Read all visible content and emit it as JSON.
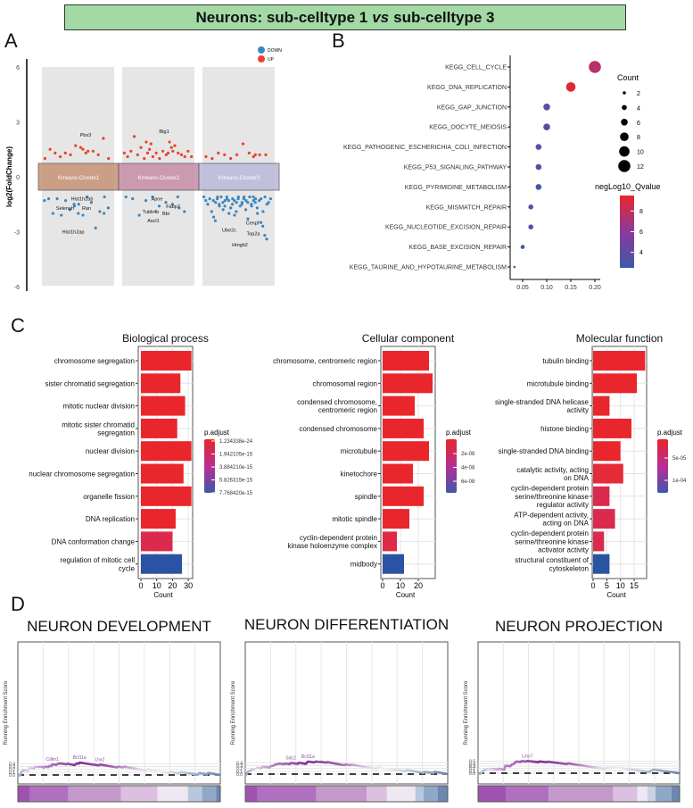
{
  "header": {
    "title_left": "Neurons: sub-celltype 1",
    "title_vs": "vs",
    "title_right": "sub-celltype 3",
    "bg_color": "#a3d9a5"
  },
  "panels": {
    "a": "A",
    "b": "B",
    "c": "C",
    "d": "D"
  },
  "chart_data": [
    {
      "panel": "A",
      "type": "scatter",
      "ylabel": "log2(FoldChange)",
      "ylim": [
        -6,
        6
      ],
      "yticks": [
        "6",
        "3",
        "0",
        "-3",
        "-6"
      ],
      "legend": [
        {
          "label": "DOWN",
          "color": "#3b86c0"
        },
        {
          "label": "UP",
          "color": "#e8432e"
        }
      ],
      "legend_position": "top-right",
      "clusters": [
        {
          "name": "Kmeans-Cluster1",
          "band_color": "#c8987c",
          "up": [
            1.0,
            1.5,
            1.3,
            1.1,
            1.3,
            1.2,
            1.7,
            1.6,
            1.3,
            1.5,
            1.4,
            1.4,
            1.2,
            2.1,
            1.0
          ],
          "down": [
            -1.3,
            -1.2,
            -2.0,
            -1.2,
            -2.1,
            -1.3,
            -1.8,
            -1.5,
            -2.0,
            -1.6,
            -1.5,
            -2.1,
            -1.1,
            -1.4,
            -2.8,
            -1.9,
            -2.0,
            -1.7,
            -1.1
          ],
          "genes": [
            {
              "gene": "Pbx3",
              "y": 2.3
            },
            {
              "gene": "Hist1h2ab",
              "y": -1.2
            },
            {
              "gene": "Selenoh",
              "y": -1.7
            },
            {
              "gene": "Ran",
              "y": -1.7
            },
            {
              "gene": "Hist1h2ap",
              "y": -3.0
            }
          ]
        },
        {
          "name": "Kmeans-Cluster2",
          "band_color": "#c991ab",
          "up": [
            1.3,
            1.1,
            1.4,
            2.2,
            1.2,
            1.6,
            1.0,
            1.3,
            1.8,
            1.9,
            1.5,
            1.1,
            1.3,
            1.0,
            1.4,
            1.2,
            1.9,
            1.4,
            1.3,
            1.6,
            1.7,
            1.3,
            1.2,
            1.1,
            1.4,
            1.1
          ],
          "down": [
            -1.1,
            -1.2,
            -2.1,
            -1.3,
            -1.1,
            -1.6,
            -1.4,
            -1.5,
            -1.7,
            -1.1,
            -1.9
          ],
          "genes": [
            {
              "gene": "Btg1",
              "y": 2.5
            },
            {
              "gene": "Apoe",
              "y": -1.2
            },
            {
              "gene": "Fabp7",
              "y": -1.6
            },
            {
              "gene": "Tubb4b",
              "y": -1.9
            },
            {
              "gene": "Bbi",
              "y": -2.0
            },
            {
              "gene": "Ascl1",
              "y": -2.4
            }
          ]
        },
        {
          "name": "Kmeans-Cluster3",
          "band_color": "#bcbcdc",
          "up": [
            1.1,
            1.0,
            1.3,
            1.2,
            1.0,
            1.2,
            1.8,
            1.3,
            1.2,
            1.1,
            1.2,
            1.2
          ],
          "down": [
            -1.1,
            -1.3,
            -1.5,
            -1.2,
            -1.9,
            -2.2,
            -1.4,
            -1.1,
            -1.6,
            -1.3,
            -2.4,
            -1.2,
            -1.5,
            -1.1,
            -1.8,
            -1.3,
            -1.2,
            -2.0,
            -1.4,
            -1.6,
            -1.1,
            -1.3,
            -1.7,
            -1.2,
            -2.1,
            -1.4,
            -1.1,
            -1.5,
            -1.3,
            -1.9,
            -1.2,
            -1.6,
            -1.4,
            -1.1,
            -1.3,
            -2.3,
            -1.5,
            -1.2,
            -1.8,
            -1.4,
            -1.1,
            -1.6,
            -1.3,
            -1.2,
            -2.0,
            -1.5,
            -1.1,
            -1.4,
            -1.7,
            -1.3,
            -1.2,
            -1.9,
            -1.1,
            -1.5,
            -2.5,
            -2.7,
            -3.2,
            -3.4,
            -1.4,
            -1.2
          ],
          "genes": [
            {
              "gene": "Cenpf",
              "y": -2.5
            },
            {
              "gene": "Ube2c",
              "y": -2.9
            },
            {
              "gene": "Top2a",
              "y": -3.1
            },
            {
              "gene": "Hmgb2",
              "y": -3.7
            }
          ]
        }
      ]
    },
    {
      "panel": "B",
      "type": "scatter",
      "xticks": [
        "0.05",
        "0.10",
        "0.15",
        "0.20"
      ],
      "size_legend_title": "Count",
      "size_legend": [
        2,
        4,
        6,
        8,
        10,
        12
      ],
      "color_legend_title": "negLog10_Qvalue",
      "color_ticks": [
        "8",
        "6",
        "4"
      ],
      "color_range": [
        2.5,
        9.5
      ],
      "colors": {
        "low": "#3b5aa8",
        "mid": "#8a3a9c",
        "high": "#e8262b"
      },
      "terms": [
        {
          "label": "KEGG_CELL_CYCLE",
          "x": 0.2,
          "count": 12,
          "q": 7.6
        },
        {
          "label": "KEGG_DNA_REPLICATION",
          "x": 0.15,
          "count": 9,
          "q": 9.2
        },
        {
          "label": "KEGG_GAP_JUNCTION",
          "x": 0.1,
          "count": 6,
          "q": 4.0
        },
        {
          "label": "KEGG_OOCYTE_MEIOSIS",
          "x": 0.1,
          "count": 6,
          "q": 3.8
        },
        {
          "label": "KEGG_PATHOGENIC_ESCHERICHIA_COLI_INFECTION",
          "x": 0.083,
          "count": 5,
          "q": 3.8
        },
        {
          "label": "KEGG_P53_SIGNALING_PATHWAY",
          "x": 0.083,
          "count": 5,
          "q": 3.6
        },
        {
          "label": "KEGG_PYRIMIDINE_METABOLISM",
          "x": 0.083,
          "count": 5,
          "q": 3.0
        },
        {
          "label": "KEGG_MISMATCH_REPAIR",
          "x": 0.067,
          "count": 4,
          "q": 4.5
        },
        {
          "label": "KEGG_NUCLEOTIDE_EXCISION_REPAIR",
          "x": 0.067,
          "count": 4,
          "q": 3.8
        },
        {
          "label": "KEGG_BASE_EXCISION_REPAIR",
          "x": 0.05,
          "count": 3,
          "q": 2.7
        },
        {
          "label": "KEGG_TAURINE_AND_HYPOTAURINE_METABOLISM",
          "x": 0.033,
          "count": 1,
          "q": 3.2
        }
      ]
    },
    {
      "panel": "C",
      "type": "bar",
      "title": "Biological process",
      "xlabel": "Count",
      "xticks": [
        0,
        10,
        20,
        30
      ],
      "legend_title": "p.adjust",
      "legend_ticks": [
        "1.234338e-24",
        "1.942105e-15",
        "3.884210e-15",
        "5.826315e-15",
        "7.768420e-15"
      ],
      "categories": [
        "chromosome segregation",
        "sister chromatid segregation",
        "mitotic nuclear division",
        "mitotic sister chromatid\nsegregation",
        "nuclear division",
        "nuclear chromosome segregation",
        "organelle fission",
        "DNA replication",
        "DNA conformation change",
        "regulation of mitotic cell\ncycle"
      ],
      "values": [
        32,
        25,
        28,
        23,
        32,
        27,
        32,
        22,
        20,
        26
      ],
      "fills": [
        "#e8262b",
        "#e8262b",
        "#e8262b",
        "#e8262b",
        "#e8262b",
        "#e8262b",
        "#e8262b",
        "#e8262b",
        "#dc2a4e",
        "#2b53a3"
      ]
    },
    {
      "panel": "C",
      "type": "bar",
      "title": "Cellular component",
      "xlabel": "Count",
      "xticks": [
        0,
        10,
        20
      ],
      "legend_title": "p.adjust",
      "legend_ticks": [
        "2e-08",
        "4e-08",
        "6e-08"
      ],
      "categories": [
        "chromosome, centromeric region",
        "chromosomal region",
        "condensed chromosome,\ncentromeric region",
        "condensed chromosome",
        "microtubule",
        "kinetochore",
        "spindle",
        "mitotic spindle",
        "cyclin-dependent protein\nkinase holoenzyme complex",
        "midbody"
      ],
      "values": [
        26,
        28,
        18,
        23,
        26,
        17,
        23,
        15,
        8,
        12
      ],
      "fills": [
        "#e8262b",
        "#e8262b",
        "#e8262b",
        "#e8262b",
        "#e8262b",
        "#e8262b",
        "#e8262b",
        "#e8262b",
        "#df2a45",
        "#2b53a3"
      ]
    },
    {
      "panel": "C",
      "type": "bar",
      "title": "Molecular function",
      "xlabel": "Count",
      "xticks": [
        0,
        5,
        10,
        15
      ],
      "legend_title": "p.adjust",
      "legend_ticks": [
        "5e-05",
        "1e-04"
      ],
      "categories": [
        "tubulin binding",
        "microtubule binding",
        "single-stranded DNA helicase\nactivity",
        "histone binding",
        "single-stranded DNA binding",
        "catalytic activity, acting\non DNA",
        "cyclin-dependent protein\nserine/threonine kinase\nregulator activity",
        "ATP-dependent activity,\nacting on DNA",
        "cyclin-dependent protein\nserine/threonine kinase\nactivator activity",
        "structural constituent of\ncytoskeleton"
      ],
      "values": [
        19,
        16,
        6,
        14,
        10,
        11,
        6,
        8,
        4,
        6
      ],
      "fills": [
        "#e8262b",
        "#e8262b",
        "#e8262b",
        "#e8262b",
        "#e8262b",
        "#e52a38",
        "#dc2a4e",
        "#dc2a4e",
        "#dc2a4e",
        "#2b53a3"
      ]
    },
    {
      "panel": "D",
      "type": "line",
      "title": "NEURON DEVELOPMENT",
      "ylabel": "Running Enrichment Score",
      "yticks": [
        0.0,
        0.1,
        0.2,
        0.3,
        0.4
      ],
      "ylim": [
        -0.03,
        0.47
      ],
      "curve": [
        [
          0,
          0
        ],
        [
          0.01,
          -0.02
        ],
        [
          0.02,
          0.12
        ],
        [
          0.03,
          0.18
        ],
        [
          0.05,
          0.14
        ],
        [
          0.055,
          0.25
        ],
        [
          0.08,
          0.23
        ],
        [
          0.085,
          0.29
        ],
        [
          0.12,
          0.29
        ],
        [
          0.13,
          0.26
        ],
        [
          0.135,
          0.3
        ],
        [
          0.15,
          0.28
        ],
        [
          0.155,
          0.32
        ],
        [
          0.165,
          0.31
        ],
        [
          0.17,
          0.38
        ],
        [
          0.19,
          0.36
        ],
        [
          0.195,
          0.39
        ],
        [
          0.21,
          0.41
        ],
        [
          0.24,
          0.38
        ],
        [
          0.245,
          0.4
        ],
        [
          0.28,
          0.35
        ],
        [
          0.29,
          0.41
        ],
        [
          0.3,
          0.4
        ],
        [
          0.305,
          0.44
        ],
        [
          0.4,
          0.34
        ],
        [
          0.405,
          0.37
        ],
        [
          0.49,
          0.27
        ],
        [
          0.495,
          0.3
        ],
        [
          0.52,
          0.27
        ],
        [
          0.525,
          0.3
        ],
        [
          0.63,
          0.16
        ],
        [
          0.64,
          0.2
        ],
        [
          0.75,
          0.07
        ],
        [
          0.755,
          0.11
        ],
        [
          0.8,
          0.05
        ],
        [
          0.805,
          0.1
        ],
        [
          0.89,
          0.01
        ],
        [
          0.895,
          0.07
        ],
        [
          0.935,
          0.02
        ],
        [
          0.94,
          0.07
        ],
        [
          1.0,
          0.0
        ]
      ],
      "rank_bar": [
        [
          0,
          0.06,
          "#a052b0"
        ],
        [
          0.06,
          0.25,
          "#b070c0"
        ],
        [
          0.25,
          0.51,
          "#c598cc"
        ],
        [
          0.51,
          0.69,
          "#dcc0e0"
        ],
        [
          0.69,
          0.84,
          "#efe7f1"
        ],
        [
          0.84,
          0.91,
          "#b8c8dc"
        ],
        [
          0.91,
          0.98,
          "#8fa8c8"
        ],
        [
          0.98,
          1,
          "#6c88b0"
        ]
      ],
      "genes": [
        {
          "gene": "Bcl11a",
          "x": 0.305
        },
        {
          "gene": "Cdkn1",
          "x": 0.17
        },
        {
          "gene": "Lhx2",
          "x": 0.405
        }
      ]
    },
    {
      "panel": "D",
      "type": "line",
      "title": "NEURON DIFFERENTIATION",
      "ylabel": "Running Enrichment Score",
      "yticks": [
        0.0,
        0.1,
        0.2,
        0.3,
        0.4
      ],
      "ylim": [
        -0.03,
        0.47
      ],
      "curve": [
        [
          0,
          0
        ],
        [
          0.005,
          -0.02
        ],
        [
          0.01,
          0.05
        ],
        [
          0.02,
          0.11
        ],
        [
          0.03,
          0.13
        ],
        [
          0.035,
          0.17
        ],
        [
          0.05,
          0.18
        ],
        [
          0.06,
          0.23
        ],
        [
          0.08,
          0.2
        ],
        [
          0.085,
          0.26
        ],
        [
          0.12,
          0.23
        ],
        [
          0.125,
          0.28
        ],
        [
          0.14,
          0.3
        ],
        [
          0.15,
          0.34
        ],
        [
          0.17,
          0.37
        ],
        [
          0.19,
          0.35
        ],
        [
          0.2,
          0.37
        ],
        [
          0.22,
          0.35
        ],
        [
          0.225,
          0.39
        ],
        [
          0.26,
          0.36
        ],
        [
          0.265,
          0.4
        ],
        [
          0.3,
          0.36
        ],
        [
          0.305,
          0.41
        ],
        [
          0.31,
          0.44
        ],
        [
          0.34,
          0.41
        ],
        [
          0.35,
          0.44
        ],
        [
          0.37,
          0.42
        ],
        [
          0.375,
          0.43
        ],
        [
          0.4,
          0.4
        ],
        [
          0.405,
          0.42
        ],
        [
          0.49,
          0.31
        ],
        [
          0.495,
          0.34
        ],
        [
          0.52,
          0.31
        ],
        [
          0.525,
          0.33
        ],
        [
          0.65,
          0.19
        ],
        [
          0.655,
          0.24
        ],
        [
          0.73,
          0.14
        ],
        [
          0.735,
          0.16
        ],
        [
          0.79,
          0.1
        ],
        [
          0.8,
          0.14
        ],
        [
          0.88,
          0.04
        ],
        [
          0.885,
          0.08
        ],
        [
          0.93,
          0.03
        ],
        [
          0.935,
          0.08
        ],
        [
          1,
          0
        ]
      ],
      "rank_bar": [
        [
          0,
          0.06,
          "#a052b0"
        ],
        [
          0.06,
          0.35,
          "#b070c0"
        ],
        [
          0.35,
          0.6,
          "#c598cc"
        ],
        [
          0.6,
          0.7,
          "#dcc0e0"
        ],
        [
          0.7,
          0.84,
          "#efe7f1"
        ],
        [
          0.84,
          0.88,
          "#b8c8dc"
        ],
        [
          0.88,
          0.95,
          "#8fa8c8"
        ],
        [
          0.95,
          1,
          "#6c88b0"
        ]
      ],
      "genes": [
        {
          "gene": "Bcl11a",
          "x": 0.31
        },
        {
          "gene": "Sdc2",
          "x": 0.225
        }
      ]
    },
    {
      "panel": "D",
      "type": "line",
      "title": "NEURON PROJECTION",
      "ylabel": "Running Enrichment Score",
      "yticks": [
        0.0,
        0.1,
        0.2,
        0.3,
        0.4,
        0.5
      ],
      "ylim": [
        -0.04,
        0.54
      ],
      "curve": [
        [
          0,
          0
        ],
        [
          0.01,
          -0.03
        ],
        [
          0.02,
          0.04
        ],
        [
          0.03,
          0.13
        ],
        [
          0.04,
          0.15
        ],
        [
          0.05,
          0.18
        ],
        [
          0.07,
          0.18
        ],
        [
          0.1,
          0.16
        ],
        [
          0.105,
          0.19
        ],
        [
          0.13,
          0.14
        ],
        [
          0.135,
          0.31
        ],
        [
          0.16,
          0.29
        ],
        [
          0.165,
          0.34
        ],
        [
          0.17,
          0.37
        ],
        [
          0.18,
          0.4
        ],
        [
          0.185,
          0.45
        ],
        [
          0.19,
          0.49
        ],
        [
          0.21,
          0.47
        ],
        [
          0.215,
          0.5
        ],
        [
          0.24,
          0.49
        ],
        [
          0.245,
          0.51
        ],
        [
          0.3,
          0.46
        ],
        [
          0.305,
          0.49
        ],
        [
          0.34,
          0.46
        ],
        [
          0.345,
          0.48
        ],
        [
          0.44,
          0.38
        ],
        [
          0.445,
          0.41
        ],
        [
          0.63,
          0.18
        ],
        [
          0.64,
          0.22
        ],
        [
          0.66,
          0.2
        ],
        [
          0.665,
          0.26
        ],
        [
          0.85,
          0.05
        ],
        [
          0.855,
          0.1
        ],
        [
          0.865,
          0.11
        ],
        [
          0.87,
          0.15
        ],
        [
          1,
          0
        ]
      ],
      "rank_bar": [
        [
          0,
          0.14,
          "#a052b0"
        ],
        [
          0.14,
          0.35,
          "#b070c0"
        ],
        [
          0.35,
          0.67,
          "#c598cc"
        ],
        [
          0.67,
          0.79,
          "#dcc0e0"
        ],
        [
          0.79,
          0.84,
          "#efe7f1"
        ],
        [
          0.84,
          0.88,
          "#c8d4e4"
        ],
        [
          0.88,
          0.96,
          "#8fa8c8"
        ],
        [
          0.96,
          1,
          "#6c88b0"
        ]
      ],
      "genes": [
        {
          "gene": "Lmo7",
          "x": 0.245
        }
      ]
    }
  ]
}
